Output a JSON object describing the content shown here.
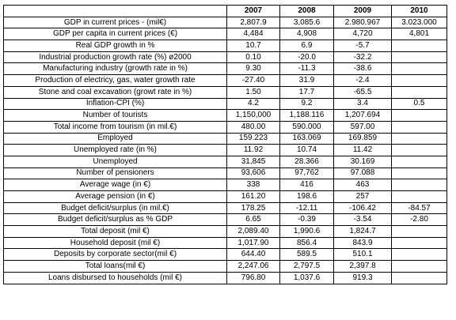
{
  "table": {
    "headers": [
      "",
      "2007",
      "2008",
      "2009",
      "2010"
    ],
    "rows": [
      {
        "label": "GDP in current prices - (mil€)",
        "values": [
          "2,807.9",
          "3,085.6",
          "2.980.967",
          "3.023.000"
        ]
      },
      {
        "label": "GDP per capita in current prices (€)",
        "values": [
          "4,484",
          "4,908",
          "4,720",
          "4,801"
        ]
      },
      {
        "label": "Real GDP growth in  %",
        "values": [
          "10.7",
          "6.9",
          "-5.7",
          ""
        ]
      },
      {
        "label": "Industrial production growth rate (%) ø2000",
        "values": [
          "0.10",
          "-20.0",
          "-32.2",
          ""
        ]
      },
      {
        "label": "Manufacturing industry (growth rate in %)",
        "values": [
          "9.30",
          "-11.3",
          "-38.6",
          ""
        ]
      },
      {
        "label": "Production of electricy, gas, water growth rate",
        "values": [
          "-27.40",
          "31.9",
          "-2.4",
          ""
        ]
      },
      {
        "label": "Stone and coal excavation (growt rate in %)",
        "values": [
          "1.50",
          "17.7",
          "-65.5",
          ""
        ]
      },
      {
        "label": "Inflation-CPI (%)",
        "values": [
          "4.2",
          "9.2",
          "3.4",
          "0.5"
        ]
      },
      {
        "label": "Number of tourists",
        "values": [
          "1,150,000",
          "1,188.116",
          "1,207.694",
          ""
        ]
      },
      {
        "label": "Total income from tourism (in mil.€)",
        "values": [
          "480.00",
          "590.000",
          "597.00",
          ""
        ]
      },
      {
        "label": "Employed",
        "values": [
          "159.223",
          "163.069",
          "169.859",
          ""
        ]
      },
      {
        "label": "Unemployed rate (in %)",
        "values": [
          "11.92",
          "10.74",
          "11.42",
          ""
        ]
      },
      {
        "label": "Unemployed",
        "values": [
          "31,845",
          "28.366",
          "30.169",
          ""
        ]
      },
      {
        "label": "Number of pensioners",
        "values": [
          "93,606",
          "97,762",
          "97.088",
          ""
        ]
      },
      {
        "label": "Average wage  (in €)",
        "values": [
          "338",
          "416",
          "463",
          ""
        ]
      },
      {
        "label": "Average pension (in €)",
        "values": [
          "161.20",
          "198.6",
          "257",
          ""
        ]
      },
      {
        "label": "Budget deficit/surplus (in mil.€)",
        "values": [
          "178.25",
          "-12.11",
          "-106.42",
          "-84.57"
        ]
      },
      {
        "label": "Budget deficit/surplus as % GDP",
        "values": [
          "6.65",
          "-0.39",
          "-3.54",
          "-2.80"
        ]
      },
      {
        "label": "Total deposit (mil €)",
        "values": [
          "2,089.40",
          "1,990.6",
          "1,824.7",
          ""
        ]
      },
      {
        "label": "Household deposit (mil €)",
        "values": [
          "1,017.90",
          "856.4",
          "843.9",
          ""
        ]
      },
      {
        "label": "Deposits by corporate sector(mil €)",
        "values": [
          "644.40",
          "589.5",
          "510.1",
          ""
        ]
      },
      {
        "label": "Total loans(mil €)",
        "values": [
          "2,247.06",
          "2,797.5",
          "2,397.8",
          ""
        ]
      },
      {
        "label": "Loans disbursed to households  (mil €)",
        "values": [
          "796.80",
          "1,037.6",
          "919.3",
          ""
        ]
      }
    ]
  }
}
